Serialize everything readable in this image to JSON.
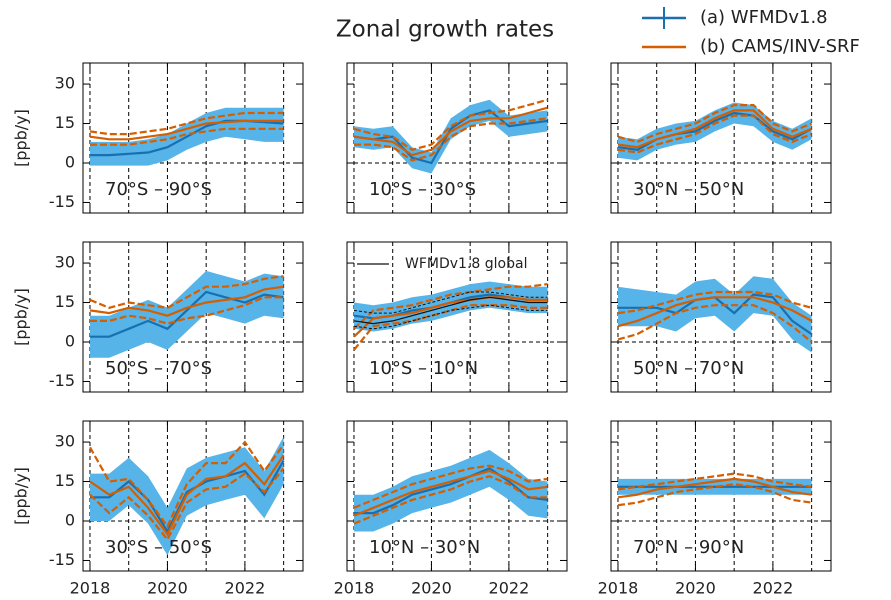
{
  "title": "Zonal growth rates",
  "chart_data": [
    {
      "type": "line",
      "label": "70°S – 90°S",
      "ylabel": "[ppb/y]",
      "x": [
        2018,
        2018.5,
        2019,
        2019.5,
        2020,
        2020.5,
        2021,
        2021.5,
        2022,
        2022.5,
        2023
      ],
      "xlim": [
        2017.82,
        2023.5
      ],
      "xticks": [
        2018,
        2020,
        2022
      ],
      "ylim": [
        -19,
        38
      ],
      "yticks": [
        -15,
        0,
        15,
        30
      ],
      "vlines": [
        2018,
        2019,
        2020,
        2021,
        2022,
        2023
      ],
      "hlines": [
        0
      ],
      "series": [
        {
          "name": "(a) WFMDv1.8",
          "color": "#1a6faf",
          "band_color": "#56b4e9",
          "values": [
            3,
            3,
            3.5,
            4,
            6,
            10,
            14,
            16,
            16,
            15.5,
            15
          ],
          "lower": [
            -1,
            -1,
            -1,
            -1,
            1,
            5,
            8,
            10,
            9,
            8,
            8
          ],
          "upper": [
            8,
            8,
            8,
            9,
            11,
            15,
            19,
            21,
            21,
            21,
            21
          ]
        },
        {
          "name": "(b) CAMS/INV-SRF",
          "color": "#d55e00",
          "values": [
            10,
            9,
            9,
            10,
            11,
            13,
            15,
            15.5,
            16,
            16,
            16
          ],
          "lower": [
            7,
            7,
            7,
            8,
            9,
            11,
            12,
            13,
            13,
            13,
            13
          ],
          "upper": [
            12,
            11,
            11,
            12,
            13,
            15,
            17,
            18,
            19,
            19,
            19
          ]
        }
      ]
    },
    {
      "type": "line",
      "label": "10°S – 30°S",
      "x": [
        2018,
        2018.5,
        2019,
        2019.5,
        2020,
        2020.5,
        2021,
        2021.5,
        2022,
        2022.5,
        2023
      ],
      "xlim": [
        2017.82,
        2023.5
      ],
      "xticks": [
        2018,
        2020,
        2022
      ],
      "ylim": [
        -19,
        38
      ],
      "yticks": [
        -15,
        0,
        15,
        30
      ],
      "vlines": [
        2018,
        2019,
        2020,
        2021,
        2022,
        2023
      ],
      "hlines": [
        0
      ],
      "series": [
        {
          "color": "#1a6faf",
          "band_color": "#56b4e9",
          "values": [
            10,
            9,
            10,
            2,
            0,
            13,
            18,
            20,
            14,
            15,
            16
          ],
          "lower": [
            6,
            5,
            6,
            -2,
            -4,
            9,
            14,
            16,
            10,
            11,
            12
          ],
          "upper": [
            14,
            13,
            14,
            6,
            4,
            17,
            22,
            24,
            18,
            19,
            20
          ]
        },
        {
          "color": "#d55e00",
          "values": [
            10,
            9,
            8,
            3,
            5,
            12,
            16,
            17,
            17,
            19,
            21
          ],
          "lower": [
            7,
            7,
            6,
            1,
            3,
            10,
            14,
            15,
            15,
            16,
            17
          ],
          "upper": [
            13,
            11,
            10,
            5,
            7,
            14,
            18,
            19,
            20,
            22,
            24
          ]
        }
      ]
    },
    {
      "type": "line",
      "label": "30°N – 50°N",
      "x": [
        2018,
        2018.5,
        2019,
        2019.5,
        2020,
        2020.5,
        2021,
        2021.5,
        2022,
        2022.5,
        2023
      ],
      "xlim": [
        2017.82,
        2023.5
      ],
      "xticks": [
        2018,
        2020,
        2022
      ],
      "ylim": [
        -19,
        38
      ],
      "yticks": [
        -15,
        0,
        15,
        30
      ],
      "vlines": [
        2018,
        2019,
        2020,
        2021,
        2022,
        2023
      ],
      "hlines": [
        0
      ],
      "series": [
        {
          "color": "#1a6faf",
          "band_color": "#56b4e9",
          "values": [
            6,
            5,
            9,
            11,
            12,
            16,
            19,
            18,
            12,
            9,
            13
          ],
          "lower": [
            2,
            1,
            5,
            7,
            8,
            12,
            15,
            14,
            8,
            5,
            9
          ],
          "upper": [
            10,
            9,
            13,
            15,
            16,
            20,
            23,
            22,
            16,
            13,
            17
          ]
        },
        {
          "color": "#d55e00",
          "values": [
            7,
            6,
            9,
            11,
            13,
            17,
            20,
            20,
            13,
            10,
            13
          ],
          "lower": [
            5,
            4,
            7,
            9,
            11,
            15,
            18,
            18,
            11,
            8,
            11
          ],
          "upper": [
            10,
            8,
            11,
            13,
            15,
            19,
            22,
            22,
            15,
            12,
            15
          ]
        }
      ]
    },
    {
      "type": "line",
      "label": "50°S – 70°S",
      "ylabel": "[ppb/y]",
      "x": [
        2018,
        2018.5,
        2019,
        2019.5,
        2020,
        2020.5,
        2021,
        2021.5,
        2022,
        2022.5,
        2023
      ],
      "xlim": [
        2017.82,
        2023.5
      ],
      "xticks": [
        2018,
        2020,
        2022
      ],
      "ylim": [
        -19,
        38
      ],
      "yticks": [
        -15,
        0,
        15,
        30
      ],
      "vlines": [
        2018,
        2019,
        2020,
        2021,
        2022,
        2023
      ],
      "hlines": [
        0
      ],
      "series": [
        {
          "color": "#1a6faf",
          "band_color": "#56b4e9",
          "values": [
            2,
            2,
            5,
            8,
            5,
            12,
            19,
            17,
            15,
            18,
            17
          ],
          "lower": [
            -6,
            -6,
            -3,
            0,
            -3,
            4,
            11,
            9,
            7,
            10,
            9
          ],
          "upper": [
            10,
            10,
            13,
            16,
            13,
            20,
            27,
            25,
            23,
            26,
            25
          ]
        },
        {
          "color": "#d55e00",
          "values": [
            12,
            11,
            13,
            12,
            10,
            13,
            15,
            16,
            17,
            20,
            21
          ],
          "lower": [
            8,
            8,
            10,
            9,
            7,
            9,
            10,
            12,
            14,
            17,
            17
          ],
          "upper": [
            16,
            13,
            15,
            14,
            13,
            17,
            21,
            21,
            22,
            24,
            25
          ]
        }
      ]
    },
    {
      "type": "line",
      "label": "10°S – 10°N",
      "x": [
        2018,
        2018.5,
        2019,
        2019.5,
        2020,
        2020.5,
        2021,
        2021.5,
        2022,
        2022.5,
        2023
      ],
      "xlim": [
        2017.82,
        2023.5
      ],
      "xticks": [
        2018,
        2020,
        2022
      ],
      "ylim": [
        -19,
        38
      ],
      "yticks": [
        -15,
        0,
        15,
        30
      ],
      "vlines": [
        2018,
        2019,
        2020,
        2021,
        2022,
        2023
      ],
      "hlines": [
        0
      ],
      "series": [
        {
          "color": "#1a6faf",
          "band_color": "#56b4e9",
          "values": [
            10,
            9,
            10,
            12,
            13,
            15,
            17,
            18,
            17,
            16,
            16
          ],
          "lower": [
            5,
            4,
            5,
            7,
            8,
            10,
            12,
            13,
            12,
            11,
            11
          ],
          "upper": [
            15,
            14,
            15,
            17,
            18,
            20,
            22,
            23,
            22,
            21,
            21
          ]
        },
        {
          "color": "#d55e00",
          "values": [
            2,
            9,
            10,
            11,
            13,
            15,
            16,
            17,
            17,
            16,
            16
          ],
          "lower": [
            -3,
            6,
            7,
            8,
            10,
            12,
            14,
            14,
            14,
            13,
            13
          ],
          "upper": [
            5,
            12,
            13,
            14,
            16,
            18,
            19,
            20,
            21,
            21,
            22
          ]
        },
        {
          "name": "WFMDv1.8 global",
          "color": "#111111",
          "values": [
            8,
            7,
            8,
            10,
            12,
            14,
            16,
            17,
            16,
            15,
            15
          ],
          "lower": [
            6,
            5,
            6,
            8,
            10,
            12,
            13,
            14,
            13,
            12,
            12
          ],
          "upper": [
            12,
            11,
            11,
            13,
            15,
            17,
            19,
            19,
            18,
            17,
            17
          ]
        }
      ]
    },
    {
      "type": "line",
      "label": "50°N – 70°N",
      "x": [
        2018,
        2018.5,
        2019,
        2019.5,
        2020,
        2020.5,
        2021,
        2021.5,
        2022,
        2022.5,
        2023
      ],
      "xlim": [
        2017.82,
        2023.5
      ],
      "xticks": [
        2018,
        2020,
        2022
      ],
      "ylim": [
        -19,
        38
      ],
      "yticks": [
        -15,
        0,
        15,
        30
      ],
      "vlines": [
        2018,
        2019,
        2020,
        2021,
        2022,
        2023
      ],
      "hlines": [
        0
      ],
      "series": [
        {
          "color": "#1a6faf",
          "band_color": "#56b4e9",
          "values": [
            13,
            13,
            13,
            11,
            16,
            17,
            11,
            18,
            17,
            8,
            3
          ],
          "lower": [
            6,
            6,
            6,
            4,
            9,
            10,
            4,
            11,
            10,
            1,
            -4
          ],
          "upper": [
            21,
            20,
            19,
            18,
            23,
            24,
            18,
            25,
            24,
            15,
            10
          ]
        },
        {
          "color": "#d55e00",
          "values": [
            6,
            8,
            11,
            14,
            16,
            17,
            17,
            17,
            15,
            12,
            8
          ],
          "lower": [
            1,
            3,
            7,
            11,
            13,
            14,
            14,
            14,
            11,
            6,
            0
          ],
          "upper": [
            11,
            12,
            14,
            16,
            18,
            19,
            19,
            19,
            18,
            15,
            13
          ]
        }
      ]
    },
    {
      "type": "line",
      "label": "30°S – 50°S",
      "ylabel": "[ppb/y]",
      "x": [
        2018,
        2018.5,
        2019,
        2019.5,
        2020,
        2020.5,
        2021,
        2021.5,
        2022,
        2022.5,
        2023
      ],
      "xlim": [
        2017.82,
        2023.5
      ],
      "xticks": [
        2018,
        2020,
        2022
      ],
      "ylim": [
        -19,
        38
      ],
      "yticks": [
        -15,
        0,
        15,
        30
      ],
      "vlines": [
        2018,
        2019,
        2020,
        2021,
        2022,
        2023
      ],
      "hlines": [
        0
      ],
      "series": [
        {
          "color": "#1a6faf",
          "band_color": "#56b4e9",
          "values": [
            9,
            9,
            15,
            8,
            -4,
            11,
            15,
            17,
            19,
            10,
            23
          ],
          "lower": [
            0,
            0,
            6,
            -1,
            -13,
            2,
            6,
            8,
            10,
            1,
            14
          ],
          "upper": [
            18,
            18,
            24,
            17,
            5,
            20,
            24,
            26,
            28,
            19,
            32
          ]
        },
        {
          "color": "#d55e00",
          "values": [
            15,
            10,
            13,
            5,
            -5,
            10,
            16,
            17,
            22,
            14,
            25
          ],
          "lower": [
            10,
            3,
            9,
            2,
            -7,
            7,
            12,
            13,
            18,
            11,
            20
          ],
          "upper": [
            28,
            15,
            16,
            8,
            -2,
            14,
            22,
            22,
            30,
            19,
            29
          ]
        }
      ]
    },
    {
      "type": "line",
      "label": "10°N – 30°N",
      "x": [
        2018,
        2018.5,
        2019,
        2019.5,
        2020,
        2020.5,
        2021,
        2021.5,
        2022,
        2022.5,
        2023
      ],
      "xlim": [
        2017.82,
        2023.5
      ],
      "xticks": [
        2018,
        2020,
        2022
      ],
      "ylim": [
        -19,
        38
      ],
      "yticks": [
        -15,
        0,
        15,
        30
      ],
      "vlines": [
        2018,
        2019,
        2020,
        2021,
        2022,
        2023
      ],
      "hlines": [
        0
      ],
      "series": [
        {
          "color": "#1a6faf",
          "band_color": "#56b4e9",
          "values": [
            3,
            3,
            6,
            10,
            12,
            14,
            17,
            20,
            15,
            9,
            8
          ],
          "lower": [
            -4,
            -4,
            -1,
            3,
            5,
            7,
            10,
            13,
            8,
            2,
            1
          ],
          "upper": [
            10,
            10,
            13,
            17,
            19,
            21,
            24,
            27,
            22,
            16,
            15
          ]
        },
        {
          "color": "#d55e00",
          "values": [
            2,
            5,
            8,
            11,
            13,
            15,
            17,
            19,
            16,
            12,
            13
          ],
          "lower": [
            -1,
            2,
            5,
            8,
            10,
            12,
            15,
            17,
            14,
            9,
            9
          ],
          "upper": [
            5,
            8,
            11,
            14,
            16,
            18,
            20,
            21,
            19,
            15,
            16
          ]
        }
      ]
    },
    {
      "type": "line",
      "label": "70°N – 90°N",
      "x": [
        2018,
        2018.5,
        2019,
        2019.5,
        2020,
        2020.5,
        2021,
        2021.5,
        2022,
        2022.5,
        2023
      ],
      "xlim": [
        2017.82,
        2023.5
      ],
      "xticks": [
        2018,
        2020,
        2022
      ],
      "ylim": [
        -19,
        38
      ],
      "yticks": [
        -15,
        0,
        15,
        30
      ],
      "vlines": [
        2018,
        2019,
        2020,
        2021,
        2022,
        2023
      ],
      "hlines": [
        0
      ],
      "series": [
        {
          "color": "#1a6faf",
          "band_color": "#56b4e9",
          "values": [
            13,
            13,
            13,
            13,
            13,
            13,
            13,
            13,
            13,
            13,
            13
          ],
          "lower": [
            10,
            10,
            10,
            10,
            10,
            10,
            10,
            10,
            10,
            10,
            10
          ],
          "upper": [
            16,
            16,
            16,
            16,
            16,
            16,
            16,
            16,
            16,
            16,
            16
          ]
        },
        {
          "color": "#d55e00",
          "values": [
            9,
            10,
            12,
            13,
            14,
            15,
            16,
            15,
            13,
            11,
            10
          ],
          "lower": [
            6,
            7,
            9,
            11,
            12,
            13,
            14,
            13,
            11,
            8,
            7
          ],
          "upper": [
            12,
            13,
            14,
            15,
            16,
            17,
            18,
            17,
            15,
            14,
            13
          ]
        }
      ]
    }
  ]
}
